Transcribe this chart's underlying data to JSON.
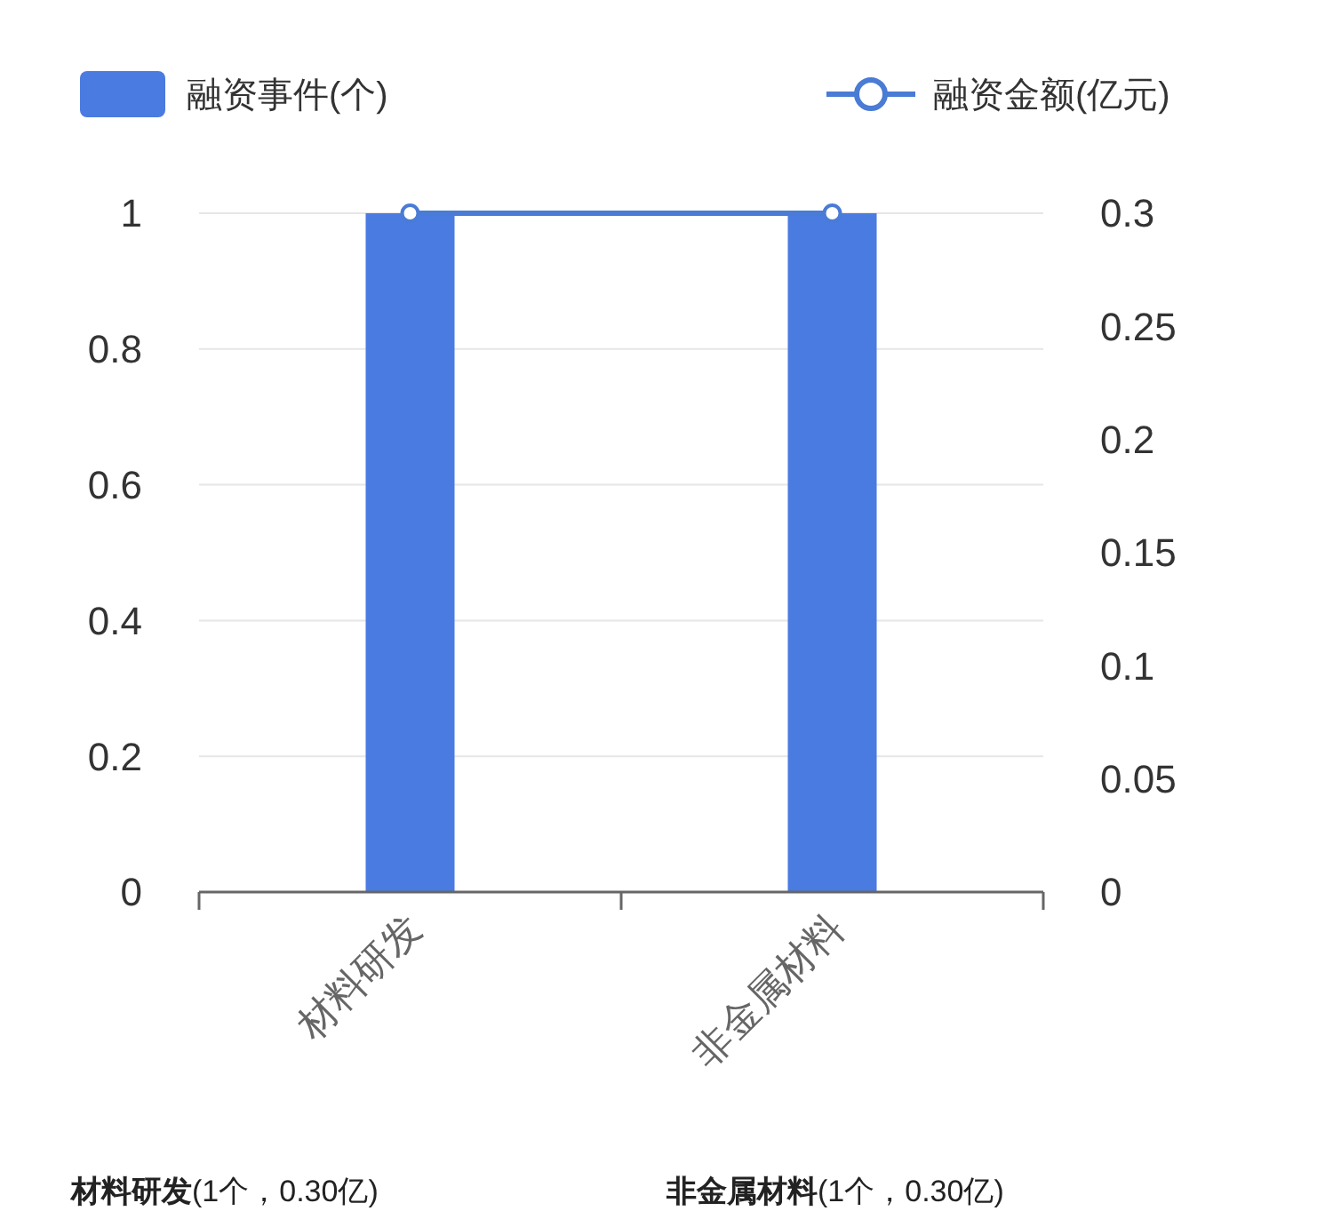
{
  "chart_data": {
    "type": "bar",
    "categories": [
      "材料研发",
      "非金属材料"
    ],
    "series": [
      {
        "name": "融资事件(个)",
        "color": "#4a7be0",
        "values": [
          1,
          1
        ]
      },
      {
        "name": "融资金额(亿元)",
        "type": "line",
        "axis": "y2",
        "color": "#4a7bd5",
        "values": [
          0.3,
          0.3
        ]
      }
    ],
    "ylim": [
      0,
      1
    ],
    "yticks": [
      0,
      0.2,
      0.4,
      0.6,
      0.8,
      1
    ],
    "y2lim": [
      0,
      0.3
    ],
    "y2ticks": [
      0,
      0.05,
      0.1,
      0.15,
      0.2,
      0.25,
      0.3
    ],
    "grid": "y",
    "legend": "top",
    "marker": "circle",
    "annotations": [
      "材料研发(1个，0.30亿)",
      "非金属材料(1个，0.30亿)"
    ]
  }
}
